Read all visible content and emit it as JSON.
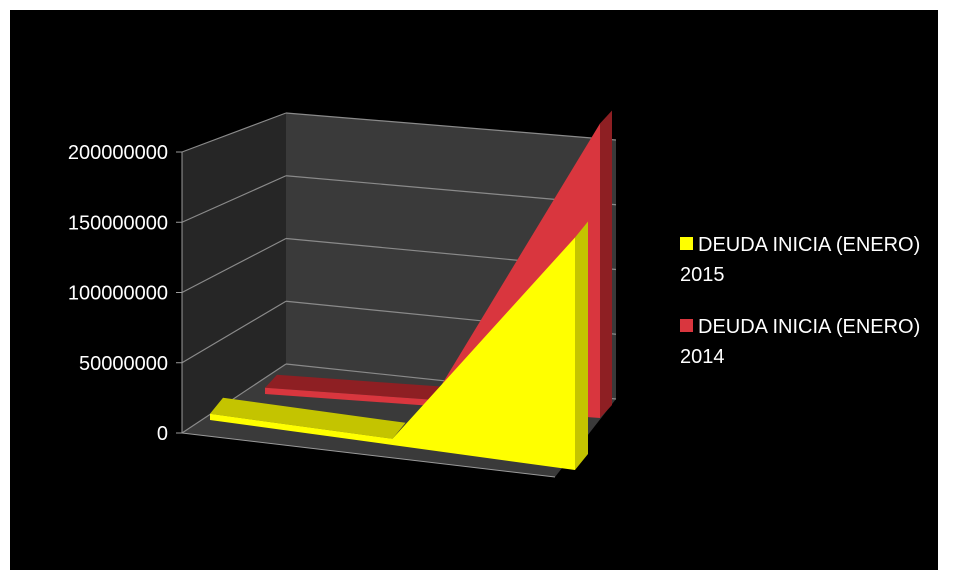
{
  "chart_data": {
    "type": "area",
    "view": "3d",
    "categories": [
      "",
      "",
      ""
    ],
    "ylim": [
      0,
      200000000
    ],
    "yticks": [
      "0",
      "50000000",
      "100000000",
      "150000000",
      "200000000"
    ],
    "grid": true,
    "legend_position": "right",
    "series": [
      {
        "name": "DEUDA INICIA (ENERO) 2015",
        "values": [
          4000000,
          4000000,
          150000000
        ],
        "color": "#ffff00",
        "side_color": "#c4c400"
      },
      {
        "name": "DEUDA INICIA (ENERO) 2014",
        "values": [
          4000000,
          4000000,
          190000000
        ],
        "color": "#d9363e",
        "side_color": "#8e1f23"
      }
    ]
  }
}
